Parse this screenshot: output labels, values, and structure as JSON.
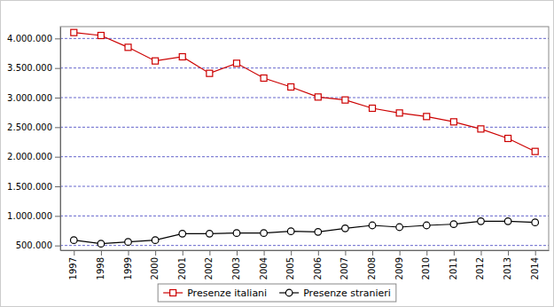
{
  "chart_data": {
    "type": "line",
    "categories": [
      "1997",
      "1998",
      "1999",
      "2000",
      "2001",
      "2002",
      "2003",
      "2004",
      "2005",
      "2006",
      "2007",
      "2008",
      "2009",
      "2010",
      "2011",
      "2012",
      "2013",
      "2014"
    ],
    "series": [
      {
        "name": "Presenze italiani",
        "color": "#cc0000",
        "marker": "square",
        "values": [
          4100000,
          4050000,
          3850000,
          3620000,
          3690000,
          3410000,
          3580000,
          3330000,
          3180000,
          3010000,
          2960000,
          2820000,
          2740000,
          2680000,
          2590000,
          2470000,
          2310000,
          2090000
        ]
      },
      {
        "name": "Presenze stranieri",
        "color": "#000000",
        "marker": "circle",
        "values": [
          590000,
          530000,
          560000,
          590000,
          700000,
          700000,
          710000,
          710000,
          740000,
          730000,
          790000,
          840000,
          810000,
          840000,
          860000,
          910000,
          910000,
          890000
        ]
      }
    ],
    "ylim": [
      420000,
      4200000
    ],
    "yticks": [
      {
        "value": 500000,
        "label": "500.000"
      },
      {
        "value": 1000000,
        "label": "1.000.000"
      },
      {
        "value": 1500000,
        "label": "1.500.000"
      },
      {
        "value": 2000000,
        "label": "2.000.000"
      },
      {
        "value": 2500000,
        "label": "2.500.000"
      },
      {
        "value": 3000000,
        "label": "3.000.000"
      },
      {
        "value": 3500000,
        "label": "3.500.000"
      },
      {
        "value": 4000000,
        "label": "4.000.000"
      }
    ],
    "grid": true,
    "legend": "bottom"
  }
}
